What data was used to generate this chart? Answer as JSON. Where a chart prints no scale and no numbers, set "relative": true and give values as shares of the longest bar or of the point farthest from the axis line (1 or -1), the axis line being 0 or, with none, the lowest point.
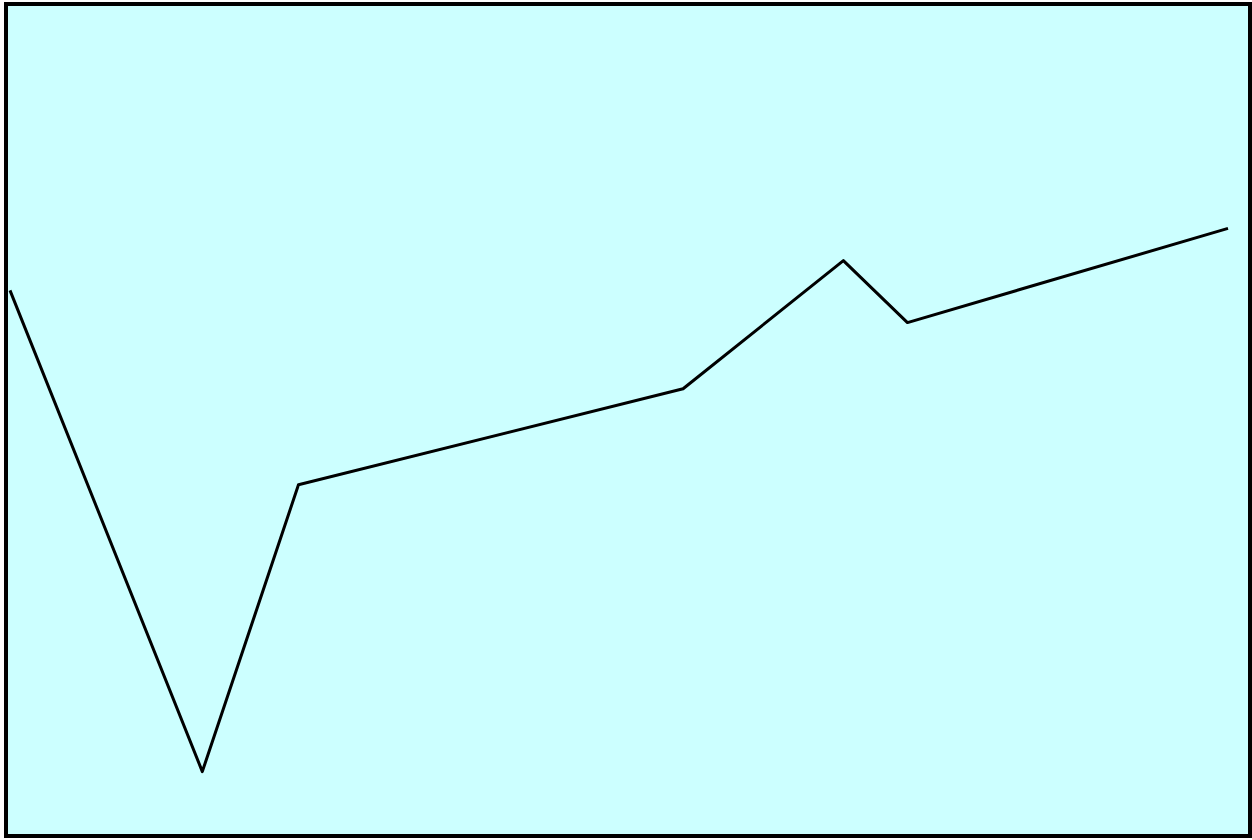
{
  "chart_data": {
    "type": "line",
    "relative": true,
    "marker": "none",
    "line_style": "solid",
    "categories": [
      null,
      null,
      null,
      null,
      null,
      null,
      null,
      null,
      null,
      null,
      null,
      null,
      null,
      null,
      null,
      null,
      null,
      null,
      null,
      null,
      null,
      null,
      null,
      null,
      null,
      null,
      null,
      null,
      null,
      null,
      null,
      null,
      null,
      null,
      null,
      null,
      null,
      null,
      null
    ],
    "series": [
      {
        "color": "#000000",
        "values": [
          0.898,
          null,
          null,
          null,
          null,
          null,
          0.106,
          null,
          null,
          0.578,
          null,
          null,
          null,
          null,
          null,
          null,
          null,
          null,
          null,
          null,
          null,
          0.736,
          null,
          null,
          null,
          null,
          0.947,
          null,
          0.845,
          null,
          null,
          null,
          null,
          null,
          null,
          null,
          null,
          null,
          1
        ]
      }
    ]
  }
}
